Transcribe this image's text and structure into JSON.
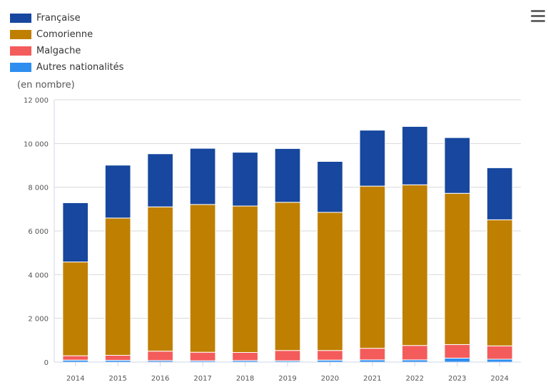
{
  "chart_data": {
    "type": "bar",
    "stacked": true,
    "unit_label": "(en nombre)",
    "categories": [
      "2014",
      "2015",
      "2016",
      "2017",
      "2018",
      "2019",
      "2020",
      "2021",
      "2022",
      "2023",
      "2024"
    ],
    "y_ticks": [
      {
        "value": 0,
        "label": "0"
      },
      {
        "value": 2000,
        "label": "2 000"
      },
      {
        "value": 4000,
        "label": "4 000"
      },
      {
        "value": 6000,
        "label": "6 000"
      },
      {
        "value": 8000,
        "label": "8 000"
      },
      {
        "value": 10000,
        "label": "10 000"
      },
      {
        "value": 12000,
        "label": "12 000"
      }
    ],
    "ylim": [
      0,
      12000
    ],
    "grid": true,
    "legend_position": "top-left",
    "series": [
      {
        "name": "Autres nationalités",
        "color": "#2e8ef0",
        "values": [
          90,
          80,
          70,
          60,
          70,
          60,
          90,
          100,
          100,
          180,
          130
        ]
      },
      {
        "name": "Malgache",
        "color": "#f45b5b",
        "values": [
          200,
          230,
          430,
          390,
          370,
          470,
          440,
          530,
          660,
          620,
          610
        ]
      },
      {
        "name": "Comorienne",
        "color": "#bf7f00",
        "values": [
          4290,
          6280,
          6600,
          6760,
          6700,
          6780,
          6320,
          7420,
          7350,
          6920,
          5770
        ]
      },
      {
        "name": "Française",
        "color": "#17479e",
        "values": [
          2710,
          2420,
          2430,
          2570,
          2460,
          2460,
          2330,
          2560,
          2670,
          2550,
          2380
        ]
      }
    ]
  },
  "legend": {
    "items": [
      {
        "label": "Française",
        "color": "#17479e"
      },
      {
        "label": "Comorienne",
        "color": "#bf7f00"
      },
      {
        "label": "Malgache",
        "color": "#f45b5b"
      },
      {
        "label": "Autres nationalités",
        "color": "#2e8ef0"
      }
    ]
  },
  "menu": {
    "icon": "hamburger-menu-icon"
  }
}
